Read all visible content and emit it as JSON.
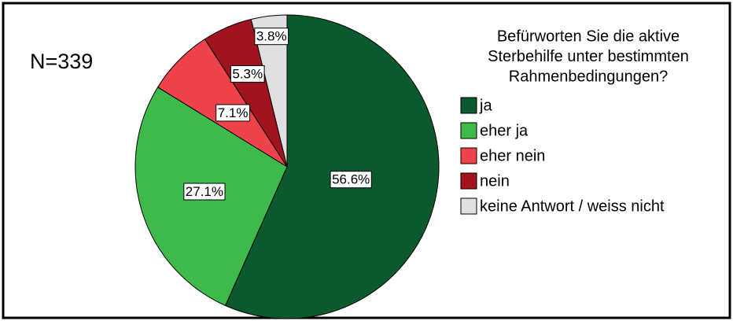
{
  "chart_data": {
    "type": "pie",
    "annotation": "N=339",
    "legend_title": [
      "Befürworten Sie die aktive",
      "Sterbehilfe unter bestimmten",
      "Rahmenbedingungen?"
    ],
    "categories": [
      "ja",
      "eher ja",
      "eher nein",
      "nein",
      "keine Antwort / weiss nicht"
    ],
    "values": [
      56.6,
      27.1,
      7.1,
      5.3,
      3.8
    ],
    "value_labels": [
      "56.6%",
      "27.1%",
      "7.1%",
      "5.3%",
      "3.8%"
    ],
    "colors": [
      "#0b5a2d",
      "#3dba4a",
      "#f0424a",
      "#a3131d",
      "#e0e0e0"
    ],
    "legend": "right"
  }
}
